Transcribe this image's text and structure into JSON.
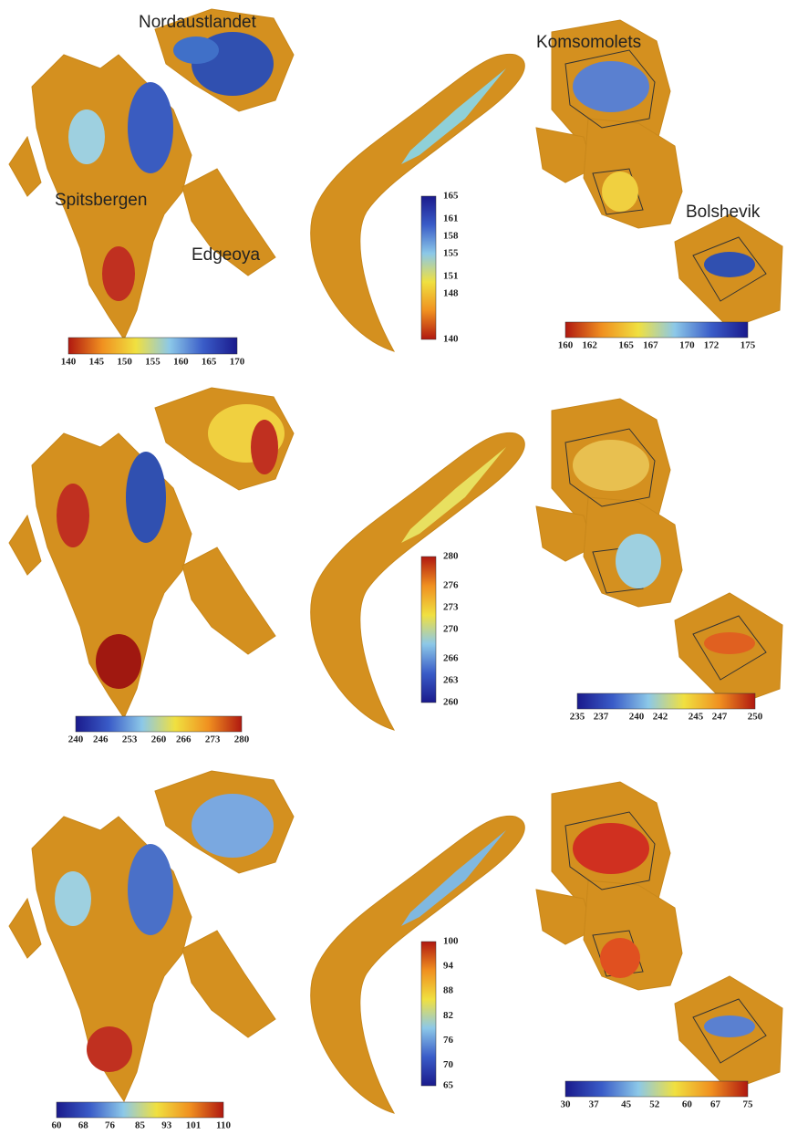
{
  "region_labels": [
    "Nordaustlandet",
    "Spitsbergen",
    "Edgeoya",
    "Komsomolets",
    "Bolshevik"
  ],
  "panels": [
    {
      "colorbar": {
        "orientation": "horizontal",
        "colormap": "red-to-blue",
        "ticks": [
          140,
          145,
          150,
          155,
          160,
          165,
          170
        ]
      }
    },
    {
      "colorbar": {
        "orientation": "vertical",
        "colormap": "red-to-blue",
        "ticks": [
          140,
          148,
          151,
          155,
          158,
          161,
          165
        ]
      }
    },
    {
      "colorbar": {
        "orientation": "horizontal",
        "colormap": "red-to-blue",
        "ticks": [
          160,
          162,
          165,
          167,
          170,
          172,
          175
        ]
      }
    },
    {
      "colorbar": {
        "orientation": "horizontal",
        "colormap": "blue-to-red",
        "ticks": [
          240,
          246,
          253,
          260,
          266,
          273,
          280
        ]
      }
    },
    {
      "colorbar": {
        "orientation": "vertical",
        "colormap": "blue-to-red",
        "ticks": [
          260,
          263,
          266,
          270,
          273,
          276,
          280
        ]
      }
    },
    {
      "colorbar": {
        "orientation": "horizontal",
        "colormap": "blue-to-red",
        "ticks": [
          235,
          237,
          240,
          242,
          245,
          247,
          250
        ]
      }
    },
    {
      "colorbar": {
        "orientation": "horizontal",
        "colormap": "blue-to-red",
        "ticks": [
          60,
          68,
          76,
          85,
          93,
          101,
          110
        ]
      }
    },
    {
      "colorbar": {
        "orientation": "vertical",
        "colormap": "blue-to-red",
        "ticks": [
          65,
          70,
          76,
          82,
          88,
          94,
          100
        ]
      }
    },
    {
      "colorbar": {
        "orientation": "horizontal",
        "colormap": "blue-to-red",
        "ticks": [
          30,
          37,
          45,
          52,
          60,
          67,
          75
        ]
      }
    }
  ]
}
